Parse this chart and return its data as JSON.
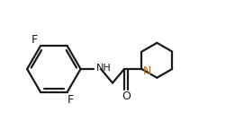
{
  "bg_color": "#ffffff",
  "line_color": "#1a1a1a",
  "label_color_F": "#1a1a1a",
  "label_color_N": "#cc6600",
  "label_color_NH": "#1a1a1a",
  "label_color_O": "#1a1a1a",
  "line_width": 1.6,
  "figsize": [
    2.71,
    1.54
  ],
  "dpi": 100,
  "xlim": [
    0,
    10
  ],
  "ylim": [
    0,
    5.7
  ]
}
